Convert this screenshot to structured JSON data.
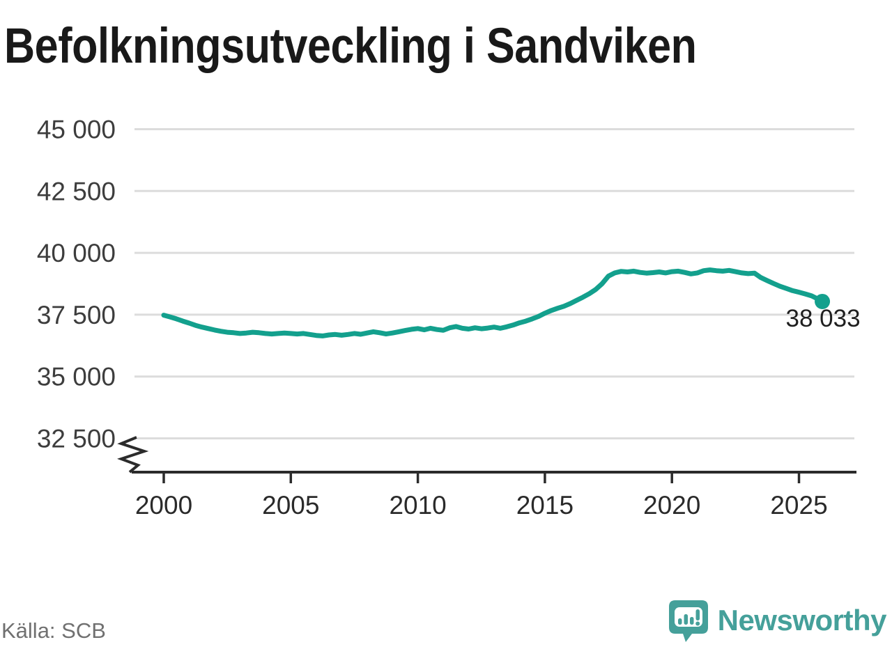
{
  "page": {
    "title": "Befolkningsutveckling i Sandviken",
    "source": "Källa: SCB",
    "brand": {
      "name": "Newsworthy"
    }
  },
  "colors": {
    "line": "#13a08d",
    "grid": "#dcdcdc",
    "axis": "#2b2b2b",
    "title_text": "#191919",
    "y_tick_text": "#3d3d3d",
    "x_tick_text": "#2a2a2a",
    "end_label_text": "#1f1f1f",
    "source_text": "#707070",
    "brand_teal": "#45a09a"
  },
  "chart_data": {
    "type": "line",
    "title": "Befolkningsutveckling i Sandviken",
    "xlabel": "",
    "ylabel": "",
    "grid": "horizontal",
    "legend": "none",
    "x_axis": {
      "ticks": [
        2000,
        2005,
        2010,
        2015,
        2020,
        2025
      ],
      "range": [
        1998.6,
        2027.3
      ]
    },
    "y_axis": {
      "range": [
        32500,
        45000
      ],
      "axis_break": true,
      "ticks": [
        {
          "value": 45000,
          "label": "45 000"
        },
        {
          "value": 42500,
          "label": "42 500"
        },
        {
          "value": 40000,
          "label": "40 000"
        },
        {
          "value": 37500,
          "label": "37 500"
        },
        {
          "value": 35000,
          "label": "35 000"
        },
        {
          "value": 32500,
          "label": "32 500"
        }
      ]
    },
    "end_point": {
      "x": 2025.92,
      "y": 38033,
      "label": "38 033"
    },
    "series": [
      {
        "name": "Befolkning",
        "color": "#13a08d",
        "points": [
          [
            2000.0,
            37480
          ],
          [
            2000.25,
            37410
          ],
          [
            2000.5,
            37330
          ],
          [
            2000.75,
            37240
          ],
          [
            2001.0,
            37160
          ],
          [
            2001.25,
            37070
          ],
          [
            2001.5,
            37000
          ],
          [
            2001.75,
            36940
          ],
          [
            2002.0,
            36880
          ],
          [
            2002.25,
            36830
          ],
          [
            2002.5,
            36790
          ],
          [
            2002.75,
            36770
          ],
          [
            2003.0,
            36740
          ],
          [
            2003.25,
            36760
          ],
          [
            2003.5,
            36790
          ],
          [
            2003.75,
            36770
          ],
          [
            2004.0,
            36740
          ],
          [
            2004.25,
            36720
          ],
          [
            2004.5,
            36740
          ],
          [
            2004.75,
            36760
          ],
          [
            2005.0,
            36740
          ],
          [
            2005.25,
            36720
          ],
          [
            2005.5,
            36740
          ],
          [
            2005.75,
            36700
          ],
          [
            2006.0,
            36660
          ],
          [
            2006.25,
            36640
          ],
          [
            2006.5,
            36680
          ],
          [
            2006.75,
            36700
          ],
          [
            2007.0,
            36670
          ],
          [
            2007.25,
            36700
          ],
          [
            2007.5,
            36740
          ],
          [
            2007.75,
            36710
          ],
          [
            2008.0,
            36760
          ],
          [
            2008.25,
            36810
          ],
          [
            2008.5,
            36770
          ],
          [
            2008.75,
            36720
          ],
          [
            2009.0,
            36760
          ],
          [
            2009.25,
            36810
          ],
          [
            2009.5,
            36860
          ],
          [
            2009.75,
            36910
          ],
          [
            2010.0,
            36940
          ],
          [
            2010.25,
            36890
          ],
          [
            2010.5,
            36950
          ],
          [
            2010.75,
            36900
          ],
          [
            2011.0,
            36870
          ],
          [
            2011.25,
            36970
          ],
          [
            2011.5,
            37020
          ],
          [
            2011.75,
            36950
          ],
          [
            2012.0,
            36920
          ],
          [
            2012.25,
            36970
          ],
          [
            2012.5,
            36930
          ],
          [
            2012.75,
            36960
          ],
          [
            2013.0,
            37000
          ],
          [
            2013.25,
            36950
          ],
          [
            2013.5,
            37010
          ],
          [
            2013.75,
            37080
          ],
          [
            2014.0,
            37170
          ],
          [
            2014.25,
            37240
          ],
          [
            2014.5,
            37330
          ],
          [
            2014.75,
            37430
          ],
          [
            2015.0,
            37560
          ],
          [
            2015.25,
            37670
          ],
          [
            2015.5,
            37760
          ],
          [
            2015.75,
            37840
          ],
          [
            2016.0,
            37950
          ],
          [
            2016.25,
            38080
          ],
          [
            2016.5,
            38210
          ],
          [
            2016.75,
            38350
          ],
          [
            2017.0,
            38520
          ],
          [
            2017.25,
            38750
          ],
          [
            2017.5,
            39060
          ],
          [
            2017.75,
            39190
          ],
          [
            2018.0,
            39250
          ],
          [
            2018.25,
            39230
          ],
          [
            2018.5,
            39260
          ],
          [
            2018.75,
            39210
          ],
          [
            2019.0,
            39180
          ],
          [
            2019.25,
            39200
          ],
          [
            2019.5,
            39230
          ],
          [
            2019.75,
            39190
          ],
          [
            2020.0,
            39240
          ],
          [
            2020.25,
            39260
          ],
          [
            2020.5,
            39210
          ],
          [
            2020.75,
            39150
          ],
          [
            2021.0,
            39190
          ],
          [
            2021.25,
            39280
          ],
          [
            2021.5,
            39310
          ],
          [
            2021.75,
            39280
          ],
          [
            2022.0,
            39260
          ],
          [
            2022.25,
            39290
          ],
          [
            2022.5,
            39240
          ],
          [
            2022.75,
            39190
          ],
          [
            2023.0,
            39160
          ],
          [
            2023.25,
            39180
          ],
          [
            2023.5,
            39000
          ],
          [
            2023.75,
            38880
          ],
          [
            2024.0,
            38760
          ],
          [
            2024.25,
            38650
          ],
          [
            2024.5,
            38560
          ],
          [
            2024.75,
            38470
          ],
          [
            2025.0,
            38410
          ],
          [
            2025.25,
            38340
          ],
          [
            2025.5,
            38260
          ],
          [
            2025.7,
            38160
          ],
          [
            2025.83,
            37960
          ],
          [
            2025.92,
            38033
          ]
        ]
      }
    ]
  }
}
